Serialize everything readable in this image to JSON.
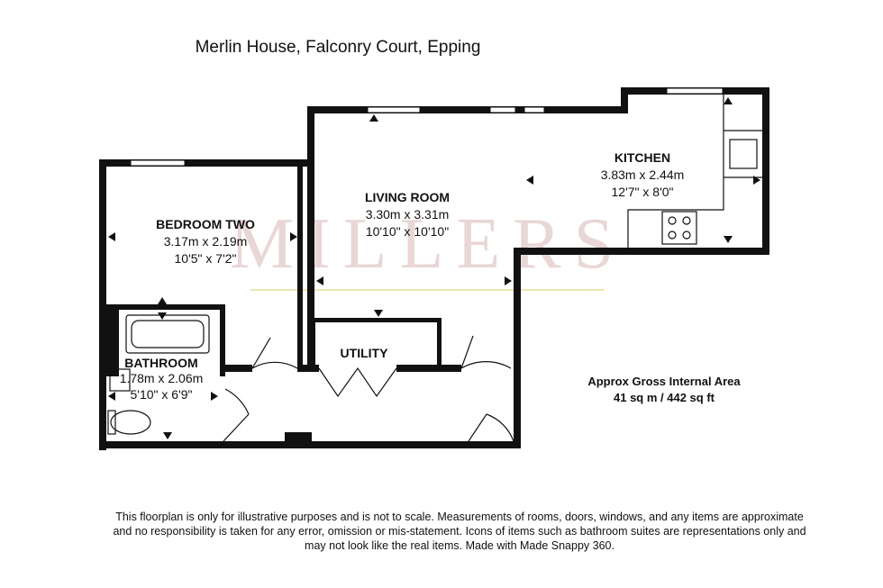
{
  "title": "Merlin House, Falconry Court, Epping",
  "watermark": "MILLERS",
  "rooms": [
    {
      "name": "KITCHEN",
      "metric": "3.83m x 2.44m",
      "imperial": "12'7\" x 8'0\""
    },
    {
      "name": "LIVING ROOM",
      "metric": "3.30m x 3.31m",
      "imperial": "10'10\" x 10'10\""
    },
    {
      "name": "BEDROOM TWO",
      "metric": "3.17m x 2.19m",
      "imperial": "10'5\" x 7'2\""
    },
    {
      "name": "BATHROOM",
      "metric": "1.78m x 2.06m",
      "imperial": "5'10\" x 6'9\""
    },
    {
      "name": "UTILITY"
    }
  ],
  "area": {
    "label": "Approx Gross Internal Area",
    "value": "41 sq m / 442 sq ft"
  },
  "disclaimer": [
    "This floorplan is only for illustrative purposes and is not to scale. Measurements of rooms, doors, windows, and any items are approximate",
    "and no responsibility is taken for any error, omission or mis-statement. Icons of items such as bathroom suites are representations only and",
    "may not look like the real items. Made with Made Snappy 360."
  ]
}
